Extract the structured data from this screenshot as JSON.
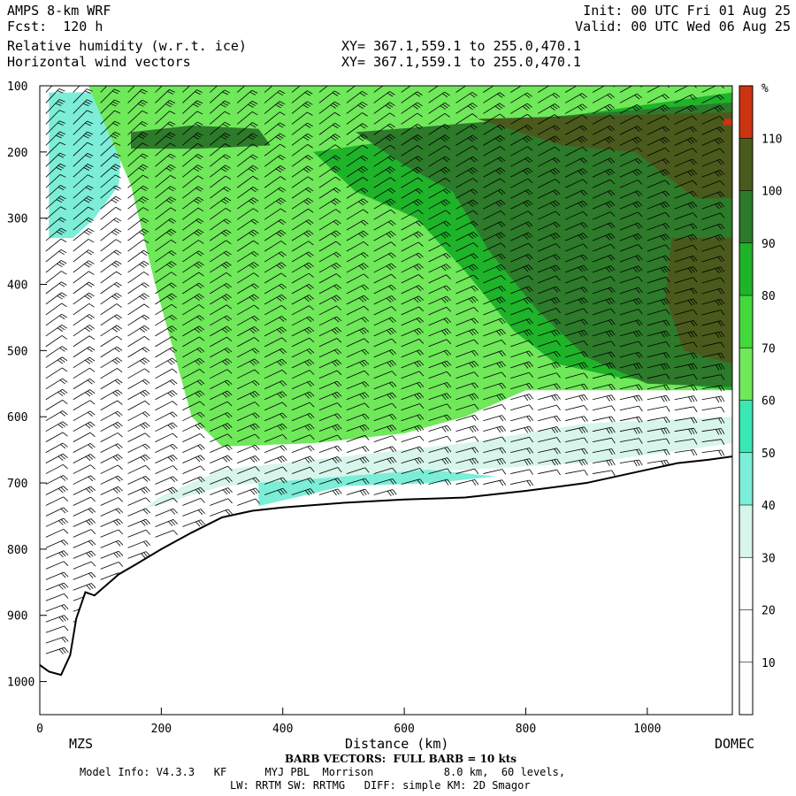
{
  "header": {
    "model": "AMPS 8-km WRF",
    "fcst": "Fcst:  120 h",
    "init": "Init: 00 UTC Fri 01 Aug 25",
    "valid": "Valid: 00 UTC Wed 06 Aug 25",
    "field1": "Relative humidity (w.r.t. ice)",
    "field2": "Horizontal wind vectors",
    "xy1": "XY= 367.1,559.1 to 255.0,470.1",
    "xy2": "XY= 367.1,559.1 to 255.0,470.1"
  },
  "footer": {
    "barb": "BARB VECTORS:  FULL BARB = 10 kts",
    "model_info": "Model Info: V4.3.3   KF      MYJ PBL  Morrison           8.0 km,  60 levels,",
    "physics": "LW: RRTM SW: RRTMG   DIFF: simple KM: 2D Smagor"
  },
  "colors": {
    "rh_10_30": "#ffffff",
    "rh_30_40": "#d7f5ea",
    "rh_40_50": "#7ceed8",
    "rh_50_60": "#39e8b4",
    "rh_60_70": "#6fe85a",
    "rh_70_80": "#44d83a",
    "rh_80_90": "#1fb32a",
    "rh_90_100": "#2d7a2a",
    "rh_100_110": "#4a5a1c",
    "rh_110_plus": "#cc3311",
    "terrain_line": "#000000"
  },
  "chart_data": {
    "type": "heatmap",
    "title": "Relative humidity (w.r.t. ice)",
    "xlabel": "Distance (km)",
    "ylabel": "",
    "x_ticks": [
      0,
      200,
      400,
      600,
      800,
      1000
    ],
    "y_ticks": [
      100,
      200,
      300,
      400,
      500,
      600,
      700,
      800,
      900,
      1000
    ],
    "xlim": [
      0,
      1140
    ],
    "ylim": [
      1050,
      100
    ],
    "endpoints": {
      "left": "MZS",
      "right": "DOMEC"
    },
    "colorbar": {
      "unit": "%",
      "labels": [
        10,
        20,
        30,
        40,
        50,
        60,
        70,
        80,
        90,
        100,
        110
      ],
      "bins": [
        {
          "from": 0,
          "to": 30,
          "color_key": "rh_10_30"
        },
        {
          "from": 30,
          "to": 40,
          "color_key": "rh_30_40"
        },
        {
          "from": 40,
          "to": 50,
          "color_key": "rh_40_50"
        },
        {
          "from": 50,
          "to": 60,
          "color_key": "rh_50_60"
        },
        {
          "from": 60,
          "to": 70,
          "color_key": "rh_60_70"
        },
        {
          "from": 70,
          "to": 80,
          "color_key": "rh_70_80"
        },
        {
          "from": 80,
          "to": 90,
          "color_key": "rh_80_90"
        },
        {
          "from": 90,
          "to": 100,
          "color_key": "rh_90_100"
        },
        {
          "from": 100,
          "to": 110,
          "color_key": "rh_100_110"
        },
        {
          "from": 110,
          "to": 120,
          "color_key": "rh_110_plus"
        }
      ]
    },
    "terrain": {
      "x": [
        0,
        15,
        35,
        50,
        60,
        75,
        90,
        105,
        130,
        160,
        200,
        250,
        300,
        350,
        400,
        500,
        600,
        700,
        800,
        900,
        950,
        1000,
        1050,
        1100,
        1140
      ],
      "p": [
        975,
        985,
        990,
        960,
        905,
        865,
        870,
        858,
        838,
        822,
        800,
        775,
        752,
        742,
        737,
        730,
        725,
        722,
        712,
        700,
        690,
        680,
        670,
        665,
        660
      ]
    },
    "rh_regions": [
      {
        "level_bin": "rh_40_50",
        "polygon": [
          [
            15,
            110
          ],
          [
            140,
            110
          ],
          [
            130,
            250
          ],
          [
            90,
            300
          ],
          [
            55,
            330
          ],
          [
            15,
            330
          ]
        ]
      },
      {
        "level_bin": "rh_60_70",
        "polygon": [
          [
            40,
            100
          ],
          [
            1140,
            100
          ],
          [
            1140,
            560
          ],
          [
            800,
            560
          ],
          [
            700,
            600
          ],
          [
            600,
            625
          ],
          [
            450,
            640
          ],
          [
            300,
            645
          ],
          [
            250,
            600
          ],
          [
            190,
            400
          ],
          [
            150,
            250
          ],
          [
            80,
            100
          ]
        ]
      },
      {
        "level_bin": "rh_30_40",
        "polygon": [
          [
            170,
            740
          ],
          [
            300,
            705
          ],
          [
            500,
            690
          ],
          [
            700,
            680
          ],
          [
            900,
            670
          ],
          [
            1140,
            640
          ],
          [
            1140,
            600
          ],
          [
            900,
            610
          ],
          [
            700,
            640
          ],
          [
            500,
            660
          ],
          [
            300,
            680
          ],
          [
            200,
            720
          ]
        ]
      },
      {
        "level_bin": "rh_40_50",
        "polygon": [
          [
            360,
            735
          ],
          [
            500,
            705
          ],
          [
            650,
            700
          ],
          [
            750,
            690
          ],
          [
            640,
            680
          ],
          [
            500,
            690
          ],
          [
            360,
            700
          ]
        ]
      },
      {
        "level_bin": "rh_80_90",
        "polygon": [
          [
            450,
            200
          ],
          [
            1140,
            110
          ],
          [
            1140,
            560
          ],
          [
            950,
            540
          ],
          [
            850,
            520
          ],
          [
            780,
            470
          ],
          [
            700,
            380
          ],
          [
            620,
            300
          ],
          [
            520,
            260
          ]
        ]
      },
      {
        "level_bin": "rh_90_100",
        "polygon": [
          [
            520,
            170
          ],
          [
            1140,
            125
          ],
          [
            1140,
            555
          ],
          [
            1000,
            550
          ],
          [
            900,
            510
          ],
          [
            820,
            440
          ],
          [
            740,
            350
          ],
          [
            680,
            260
          ],
          [
            600,
            220
          ]
        ]
      },
      {
        "level_bin": "rh_100_110",
        "polygon": [
          [
            720,
            150
          ],
          [
            1140,
            140
          ],
          [
            1140,
            270
          ],
          [
            1080,
            270
          ],
          [
            980,
            200
          ],
          [
            860,
            190
          ]
        ]
      },
      {
        "level_bin": "rh_100_110",
        "polygon": [
          [
            1040,
            330
          ],
          [
            1140,
            330
          ],
          [
            1140,
            520
          ],
          [
            1060,
            500
          ],
          [
            1030,
            420
          ]
        ]
      },
      {
        "level_bin": "rh_90_100",
        "polygon": [
          [
            150,
            170
          ],
          [
            250,
            160
          ],
          [
            360,
            165
          ],
          [
            380,
            190
          ],
          [
            260,
            195
          ],
          [
            150,
            195
          ]
        ]
      },
      {
        "level_bin": "rh_110_plus",
        "polygon": [
          [
            1125,
            150
          ],
          [
            1140,
            150
          ],
          [
            1140,
            160
          ],
          [
            1125,
            160
          ]
        ]
      }
    ]
  }
}
